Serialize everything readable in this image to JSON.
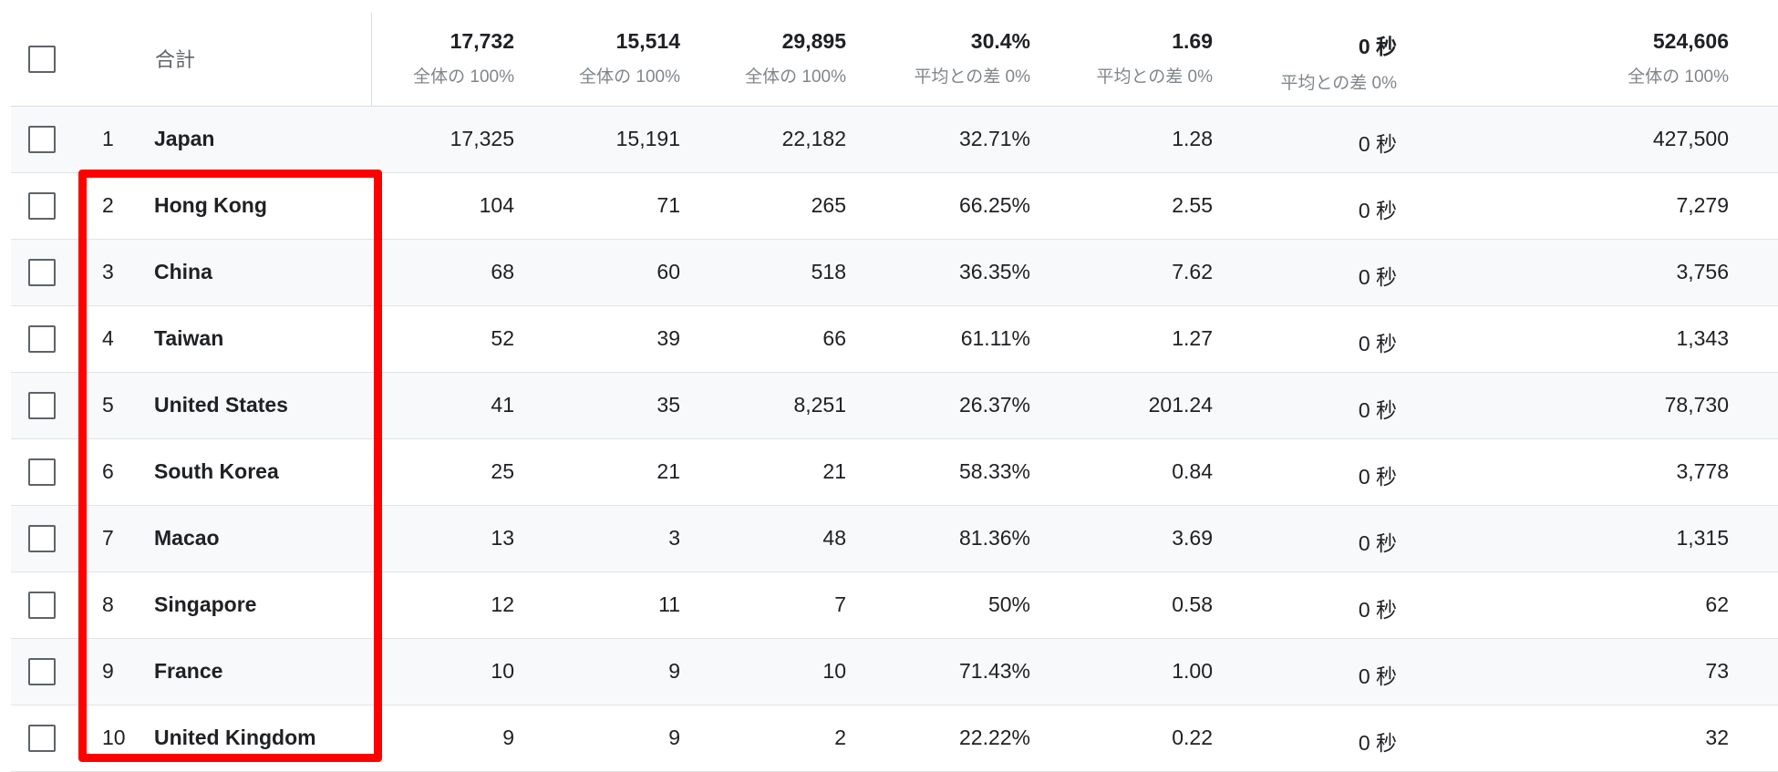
{
  "header": {
    "label": "合計",
    "totals": [
      {
        "value": "17,732",
        "sub": "全体の 100%"
      },
      {
        "value": "15,514",
        "sub": "全体の 100%"
      },
      {
        "value": "29,895",
        "sub": "全体の 100%"
      },
      {
        "value": "30.4%",
        "sub": "平均との差 0%"
      },
      {
        "value": "1.69",
        "sub": "平均との差 0%"
      },
      {
        "value": "0 秒",
        "sub": "平均との差 0%"
      },
      {
        "value": "524,606",
        "sub": "全体の 100%"
      }
    ]
  },
  "rows": [
    {
      "idx": "1",
      "country": "Japan",
      "v": [
        "17,325",
        "15,191",
        "22,182",
        "32.71%",
        "1.28",
        "0 秒",
        "427,500"
      ]
    },
    {
      "idx": "2",
      "country": "Hong Kong",
      "v": [
        "104",
        "71",
        "265",
        "66.25%",
        "2.55",
        "0 秒",
        "7,279"
      ]
    },
    {
      "idx": "3",
      "country": "China",
      "v": [
        "68",
        "60",
        "518",
        "36.35%",
        "7.62",
        "0 秒",
        "3,756"
      ]
    },
    {
      "idx": "4",
      "country": "Taiwan",
      "v": [
        "52",
        "39",
        "66",
        "61.11%",
        "1.27",
        "0 秒",
        "1,343"
      ]
    },
    {
      "idx": "5",
      "country": "United States",
      "v": [
        "41",
        "35",
        "8,251",
        "26.37%",
        "201.24",
        "0 秒",
        "78,730"
      ]
    },
    {
      "idx": "6",
      "country": "South Korea",
      "v": [
        "25",
        "21",
        "21",
        "58.33%",
        "0.84",
        "0 秒",
        "3,778"
      ]
    },
    {
      "idx": "7",
      "country": "Macao",
      "v": [
        "13",
        "3",
        "48",
        "81.36%",
        "3.69",
        "0 秒",
        "1,315"
      ]
    },
    {
      "idx": "8",
      "country": "Singapore",
      "v": [
        "12",
        "11",
        "7",
        "50%",
        "0.58",
        "0 秒",
        "62"
      ]
    },
    {
      "idx": "9",
      "country": "France",
      "v": [
        "10",
        "9",
        "10",
        "71.43%",
        "1.00",
        "0 秒",
        "73"
      ]
    },
    {
      "idx": "10",
      "country": "United Kingdom",
      "v": [
        "9",
        "9",
        "2",
        "22.22%",
        "0.22",
        "0 秒",
        "32"
      ]
    }
  ],
  "highlight_color": "#ff0000"
}
